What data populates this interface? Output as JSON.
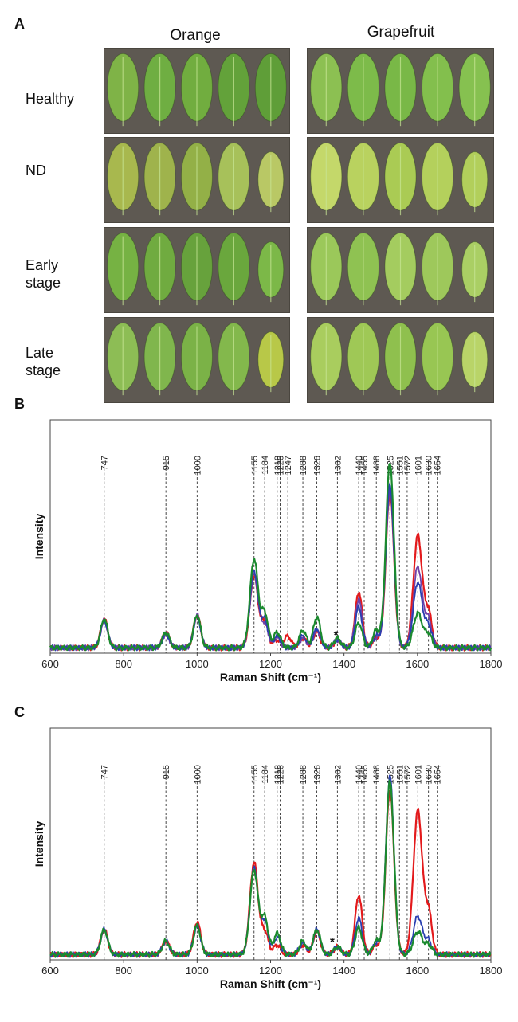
{
  "panel_a": {
    "letter": "A",
    "columns": [
      "Orange",
      "Grapefruit"
    ],
    "rows": [
      {
        "label": [
          "Healthy"
        ],
        "orange": [
          "#7fb347",
          "#6fae42",
          "#71ad3f",
          "#63a23a",
          "#5f9e38"
        ],
        "grapefruit": [
          "#8cc052",
          "#7dbb4a",
          "#79b847",
          "#83bf4d",
          "#86c150"
        ]
      },
      {
        "label": [
          "ND"
        ],
        "orange": [
          "#a8b84e",
          "#9fb34c",
          "#93b047",
          "#a7c15a",
          "#b9c865"
        ],
        "grapefruit": [
          "#c4d86a",
          "#b9d25f",
          "#aacb54",
          "#b4d05c",
          "#b2cf5b"
        ]
      },
      {
        "label": [
          "Early",
          "stage"
        ],
        "orange": [
          "#76b243",
          "#70ab40",
          "#67a23c",
          "#6aa73d",
          "#7cb848"
        ],
        "grapefruit": [
          "#9bc85a",
          "#8fc252",
          "#a4cc5f",
          "#9ec85b",
          "#aacf64"
        ]
      },
      {
        "label": [
          "Late",
          "stage"
        ],
        "orange": [
          "#8dbd55",
          "#80b64d",
          "#7bb247",
          "#83b84c",
          "#b8c848"
        ],
        "grapefruit": [
          "#a9cd5e",
          "#9fc856",
          "#8fc04e",
          "#98c653",
          "#b9d468"
        ]
      }
    ]
  },
  "icon_names": [
    "leaf-icon"
  ],
  "chart_data": [
    {
      "type": "line",
      "panel_letter": "B",
      "xlabel": "Raman Shift (cm⁻¹)",
      "ylabel": "Intensity",
      "xlim": [
        600,
        1800
      ],
      "ylim": [
        0,
        1.05
      ],
      "x_ticks": [
        600,
        800,
        1000,
        1200,
        1400,
        1600,
        1800
      ],
      "grid": false,
      "annotation_star": {
        "text": "*",
        "x": 1378,
        "y": 0.075
      },
      "reference_lines": [
        {
          "x": 747,
          "label": "747"
        },
        {
          "x": 915,
          "label": "915"
        },
        {
          "x": 1000,
          "label": "1000"
        },
        {
          "x": 1155,
          "label": "1155"
        },
        {
          "x": 1184,
          "label": "1184"
        },
        {
          "x": 1218,
          "label": "1218"
        },
        {
          "x": 1226,
          "label": "1226"
        },
        {
          "x": 1247,
          "label": "1247"
        },
        {
          "x": 1288,
          "label": "1288"
        },
        {
          "x": 1326,
          "label": "1326"
        },
        {
          "x": 1382,
          "label": "1382"
        },
        {
          "x": 1440,
          "label": "1440"
        },
        {
          "x": 1455,
          "label": "1455"
        },
        {
          "x": 1488,
          "label": "1488"
        },
        {
          "x": 1525,
          "label": "1525"
        },
        {
          "x": 1551,
          "label": "1551"
        },
        {
          "x": 1572,
          "label": "1572"
        },
        {
          "x": 1601,
          "label": "1601"
        },
        {
          "x": 1630,
          "label": "1630"
        },
        {
          "x": 1654,
          "label": "1654"
        }
      ],
      "series": [
        {
          "name": "red",
          "color": "#e31a1c",
          "width": 2.2,
          "peaks": [
            [
              747,
              0.15
            ],
            [
              915,
              0.08
            ],
            [
              1000,
              0.17
            ],
            [
              1155,
              0.37
            ],
            [
              1184,
              0.13
            ],
            [
              1218,
              0.04
            ],
            [
              1247,
              0.06
            ],
            [
              1288,
              0.05
            ],
            [
              1326,
              0.08
            ],
            [
              1382,
              0.04
            ],
            [
              1440,
              0.29
            ],
            [
              1488,
              0.05
            ],
            [
              1525,
              0.8
            ],
            [
              1601,
              0.58
            ],
            [
              1630,
              0.18
            ]
          ]
        },
        {
          "name": "purple",
          "color": "#7040a8",
          "width": 1.8,
          "peaks": [
            [
              747,
              0.14
            ],
            [
              915,
              0.07
            ],
            [
              1000,
              0.17
            ],
            [
              1155,
              0.38
            ],
            [
              1184,
              0.12
            ],
            [
              1218,
              0.05
            ],
            [
              1288,
              0.05
            ],
            [
              1326,
              0.09
            ],
            [
              1382,
              0.04
            ],
            [
              1440,
              0.25
            ],
            [
              1488,
              0.05
            ],
            [
              1525,
              0.82
            ],
            [
              1601,
              0.42
            ],
            [
              1630,
              0.14
            ]
          ]
        },
        {
          "name": "blue",
          "color": "#2a3fb0",
          "width": 1.8,
          "peaks": [
            [
              747,
              0.14
            ],
            [
              915,
              0.07
            ],
            [
              1000,
              0.16
            ],
            [
              1155,
              0.4
            ],
            [
              1184,
              0.14
            ],
            [
              1218,
              0.06
            ],
            [
              1288,
              0.06
            ],
            [
              1326,
              0.1
            ],
            [
              1382,
              0.04
            ],
            [
              1440,
              0.21
            ],
            [
              1488,
              0.06
            ],
            [
              1525,
              0.84
            ],
            [
              1601,
              0.34
            ],
            [
              1630,
              0.11
            ]
          ]
        },
        {
          "name": "green",
          "color": "#1b8a2e",
          "width": 2.2,
          "peaks": [
            [
              747,
              0.15
            ],
            [
              915,
              0.08
            ],
            [
              1000,
              0.17
            ],
            [
              1155,
              0.46
            ],
            [
              1184,
              0.18
            ],
            [
              1218,
              0.08
            ],
            [
              1288,
              0.09
            ],
            [
              1326,
              0.16
            ],
            [
              1382,
              0.05
            ],
            [
              1440,
              0.13
            ],
            [
              1488,
              0.09
            ],
            [
              1525,
              0.96
            ],
            [
              1601,
              0.18
            ],
            [
              1630,
              0.07
            ]
          ]
        }
      ]
    },
    {
      "type": "line",
      "panel_letter": "C",
      "xlabel": "Raman Shift (cm⁻¹)",
      "ylabel": "Intensity",
      "xlim": [
        600,
        1800
      ],
      "ylim": [
        0,
        1.05
      ],
      "x_ticks": [
        600,
        800,
        1000,
        1200,
        1400,
        1600,
        1800
      ],
      "grid": false,
      "annotation_star": {
        "text": "*",
        "x": 1368,
        "y": 0.075
      },
      "reference_lines": [
        {
          "x": 747,
          "label": "747"
        },
        {
          "x": 915,
          "label": "915"
        },
        {
          "x": 1000,
          "label": "1000"
        },
        {
          "x": 1155,
          "label": "1155"
        },
        {
          "x": 1184,
          "label": "1184"
        },
        {
          "x": 1218,
          "label": "1218"
        },
        {
          "x": 1226,
          "label": "1226"
        },
        {
          "x": 1288,
          "label": "1288"
        },
        {
          "x": 1326,
          "label": "1326"
        },
        {
          "x": 1382,
          "label": "1382"
        },
        {
          "x": 1440,
          "label": "1440"
        },
        {
          "x": 1455,
          "label": "1455"
        },
        {
          "x": 1488,
          "label": "1488"
        },
        {
          "x": 1525,
          "label": "1525"
        },
        {
          "x": 1551,
          "label": "1551"
        },
        {
          "x": 1572,
          "label": "1572"
        },
        {
          "x": 1601,
          "label": "1601"
        },
        {
          "x": 1630,
          "label": "1630"
        },
        {
          "x": 1654,
          "label": "1654"
        }
      ],
      "series": [
        {
          "name": "red",
          "color": "#e31a1c",
          "width": 2.2,
          "peaks": [
            [
              747,
              0.13
            ],
            [
              915,
              0.07
            ],
            [
              1000,
              0.17
            ],
            [
              1155,
              0.48
            ],
            [
              1184,
              0.12
            ],
            [
              1218,
              0.05
            ],
            [
              1288,
              0.05
            ],
            [
              1326,
              0.12
            ],
            [
              1382,
              0.04
            ],
            [
              1440,
              0.31
            ],
            [
              1488,
              0.05
            ],
            [
              1525,
              0.86
            ],
            [
              1601,
              0.75
            ],
            [
              1630,
              0.22
            ]
          ]
        },
        {
          "name": "blue",
          "color": "#2a3fb0",
          "width": 1.8,
          "peaks": [
            [
              747,
              0.13
            ],
            [
              915,
              0.07
            ],
            [
              1000,
              0.15
            ],
            [
              1155,
              0.45
            ],
            [
              1184,
              0.17
            ],
            [
              1218,
              0.09
            ],
            [
              1288,
              0.06
            ],
            [
              1326,
              0.13
            ],
            [
              1382,
              0.04
            ],
            [
              1440,
              0.19
            ],
            [
              1488,
              0.06
            ],
            [
              1525,
              0.93
            ],
            [
              1601,
              0.2
            ],
            [
              1630,
              0.07
            ]
          ]
        },
        {
          "name": "green",
          "color": "#1b8a2e",
          "width": 2.2,
          "peaks": [
            [
              747,
              0.13
            ],
            [
              915,
              0.07
            ],
            [
              1000,
              0.15
            ],
            [
              1155,
              0.44
            ],
            [
              1184,
              0.19
            ],
            [
              1218,
              0.11
            ],
            [
              1288,
              0.07
            ],
            [
              1326,
              0.13
            ],
            [
              1382,
              0.04
            ],
            [
              1440,
              0.14
            ],
            [
              1488,
              0.07
            ],
            [
              1525,
              0.9
            ],
            [
              1601,
              0.12
            ],
            [
              1630,
              0.05
            ]
          ]
        }
      ]
    }
  ]
}
